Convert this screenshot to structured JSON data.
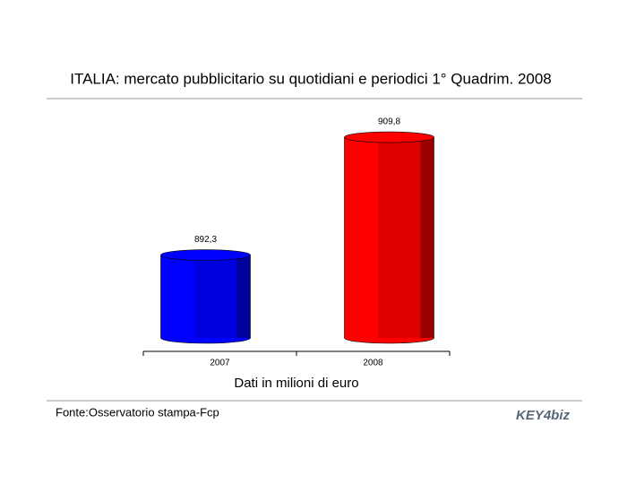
{
  "chart_data": {
    "type": "bar",
    "title": "ITALIA: mercato pubblicitario su quotidiani e periodici 1° Quadrim. 2008",
    "categories": [
      "2007",
      "2008"
    ],
    "values": [
      892.3,
      909.8
    ],
    "value_labels": [
      "892,3",
      "909,8"
    ],
    "colors": [
      "#0000ff",
      "#ff0000"
    ],
    "ylim": [
      880,
      915
    ],
    "x_label": "Dati in milioni di euro",
    "source": "Fonte:Osservatorio stampa-Fcp",
    "logo": "KEY4biz"
  }
}
